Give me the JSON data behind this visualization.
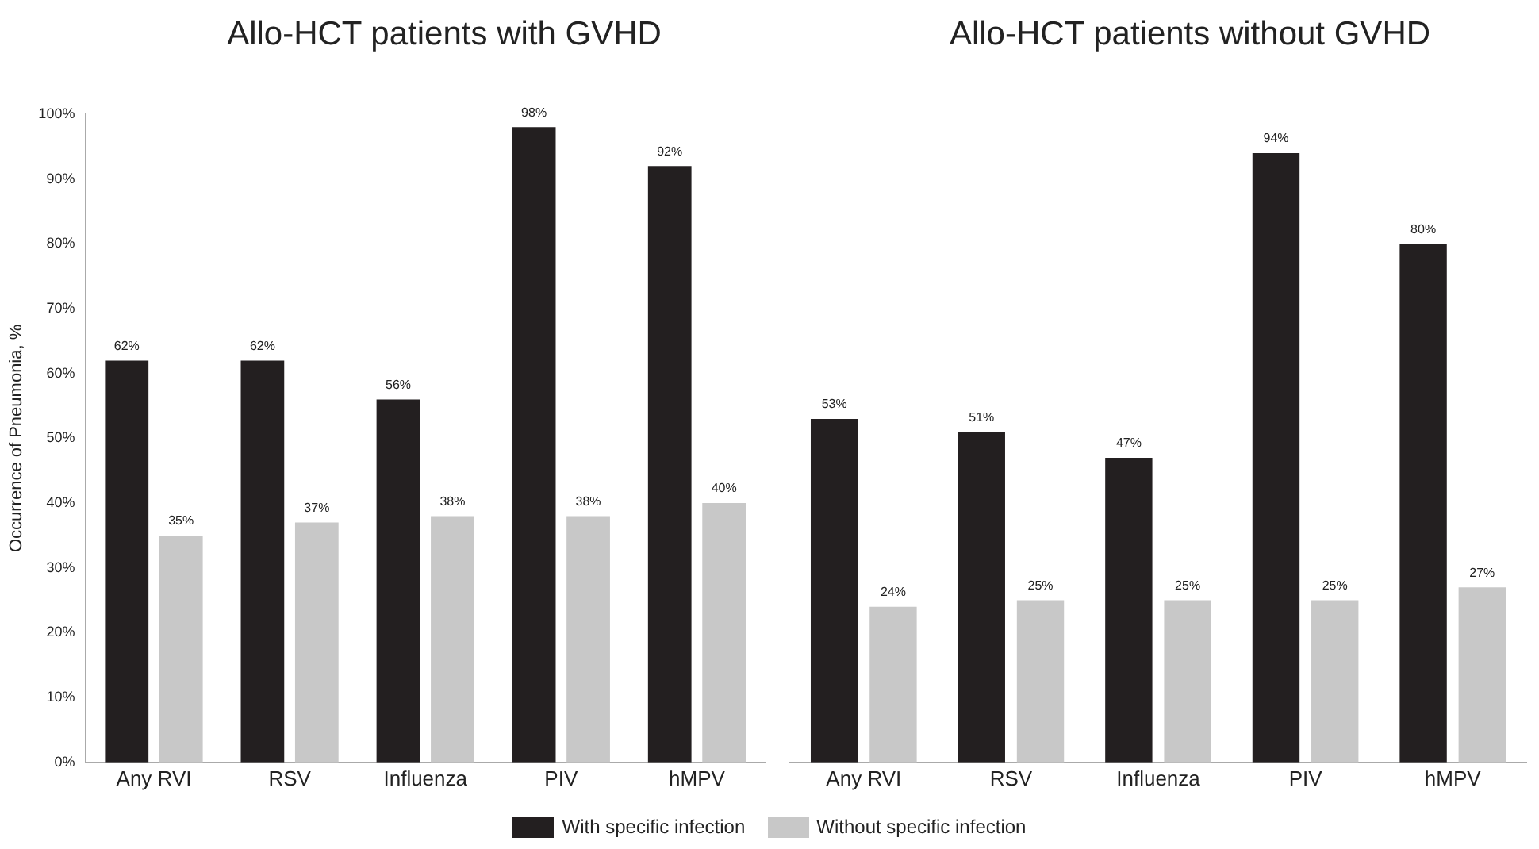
{
  "chart_data": [
    {
      "type": "bar",
      "title": "Allo-HCT patients with GVHD",
      "ylabel": "Occurrence of Pneumonia, %",
      "categories": [
        "Any RVI",
        "RSV",
        "Influenza",
        "PIV",
        "hMPV"
      ],
      "series": [
        {
          "name": "With specific infection",
          "color": "#231f20",
          "values": [
            62,
            62,
            56,
            98,
            92
          ],
          "value_labels": [
            "62%",
            "62%",
            "56%",
            "98%",
            "92%"
          ]
        },
        {
          "name": "Without specific infection",
          "color": "#c8c8c8",
          "values": [
            35,
            37,
            38,
            38,
            40
          ],
          "value_labels": [
            "35%",
            "37%",
            "38%",
            "38%",
            "40%"
          ]
        }
      ],
      "ylim": [
        0,
        100
      ],
      "yticks": [
        {
          "value": 0,
          "label": "0%"
        },
        {
          "value": 10,
          "label": "10%"
        },
        {
          "value": 20,
          "label": "20%"
        },
        {
          "value": 30,
          "label": "30%"
        },
        {
          "value": 40,
          "label": "40%"
        },
        {
          "value": 50,
          "label": "50%"
        },
        {
          "value": 60,
          "label": "60%"
        },
        {
          "value": 70,
          "label": "70%"
        },
        {
          "value": 80,
          "label": "80%"
        },
        {
          "value": 90,
          "label": "90%"
        },
        {
          "value": 100,
          "label": "100%"
        }
      ],
      "grid": false,
      "legend": "bottom"
    },
    {
      "type": "bar",
      "title": "Allo-HCT patients without GVHD",
      "categories": [
        "Any RVI",
        "RSV",
        "Influenza",
        "PIV",
        "hMPV"
      ],
      "series": [
        {
          "color": "#231f20",
          "values": [
            53,
            51,
            47,
            94,
            80
          ],
          "value_labels": [
            "53%",
            "51%",
            "47%",
            "94%",
            "80%"
          ]
        },
        {
          "color": "#c8c8c8",
          "values": [
            24,
            25,
            25,
            25,
            27
          ],
          "value_labels": [
            "24%",
            "25%",
            "25%",
            "25%",
            "27%"
          ]
        }
      ],
      "ylim": [
        0,
        100
      ],
      "tick_labels": "x",
      "grid": false
    }
  ]
}
